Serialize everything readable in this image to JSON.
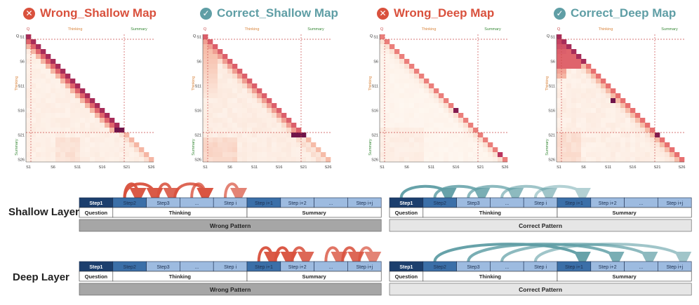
{
  "panels": [
    {
      "title": "Wrong_Shallow Map",
      "status": "wrong",
      "variant": "ws",
      "ticks_y": [
        "S1",
        "S6",
        "S11",
        "S16",
        "S21",
        "S26"
      ],
      "ticks_x": [
        "S1",
        "S6",
        "S11",
        "S16",
        "S21",
        "S26"
      ]
    },
    {
      "title": "Correct_Shallow Map",
      "status": "correct",
      "variant": "cs",
      "ticks_y": [
        "S1",
        "S6",
        "S11",
        "S16",
        "S21",
        "S26"
      ],
      "ticks_x": [
        "S1",
        "S6",
        "S11",
        "S16",
        "S21",
        "S26"
      ]
    },
    {
      "title": "Wrong_Deep Map",
      "status": "wrong",
      "variant": "wd",
      "ticks_y": [
        "S1",
        "S6",
        "S11",
        "S16",
        "S21",
        "S26"
      ],
      "ticks_x": [
        "S1",
        "S6",
        "S11",
        "S16",
        "S21",
        "S26"
      ]
    },
    {
      "title": "Correct_Deep Map",
      "status": "correct",
      "variant": "cd",
      "ticks_y": [
        "S1",
        "S6",
        "S11",
        "S16",
        "S21",
        "S26"
      ],
      "ticks_x": [
        "S1",
        "S6",
        "S11",
        "S16",
        "S21",
        "S26"
      ]
    }
  ],
  "heatmap_labels": {
    "q": "Q",
    "thinking": "Thinking",
    "summary": "Summary"
  },
  "layers": {
    "shallow": "Shallow Layer",
    "deep": "Deep Layer"
  },
  "steps": [
    "Step1",
    "Step2",
    "Step3",
    "...",
    "Step i",
    "Step i+1",
    "Step i+2",
    "...",
    "Step i+j"
  ],
  "sections": {
    "question": "Question",
    "thinking": "Thinking",
    "summary": "Summary"
  },
  "patterns": {
    "wrong": "Wrong Pattern",
    "correct": "Correct Pattern"
  },
  "colors": {
    "wrong": "#d9513d",
    "correct": "#5f9ea5",
    "wrong_pattern_bg": "#a6a6a6",
    "correct_pattern_bg": "#e6e6e6",
    "step_dark": "#1c3f6e",
    "step_mid": "#3b6fa8",
    "step_light": "#9dbbe0",
    "wrong_arrow": "#d9513d",
    "correct_arrow": "#5f9ea5"
  },
  "diagrams": [
    {
      "layer": "shallow",
      "status": "wrong"
    },
    {
      "layer": "shallow",
      "status": "correct"
    },
    {
      "layer": "deep",
      "status": "wrong"
    },
    {
      "layer": "deep",
      "status": "correct"
    }
  ]
}
